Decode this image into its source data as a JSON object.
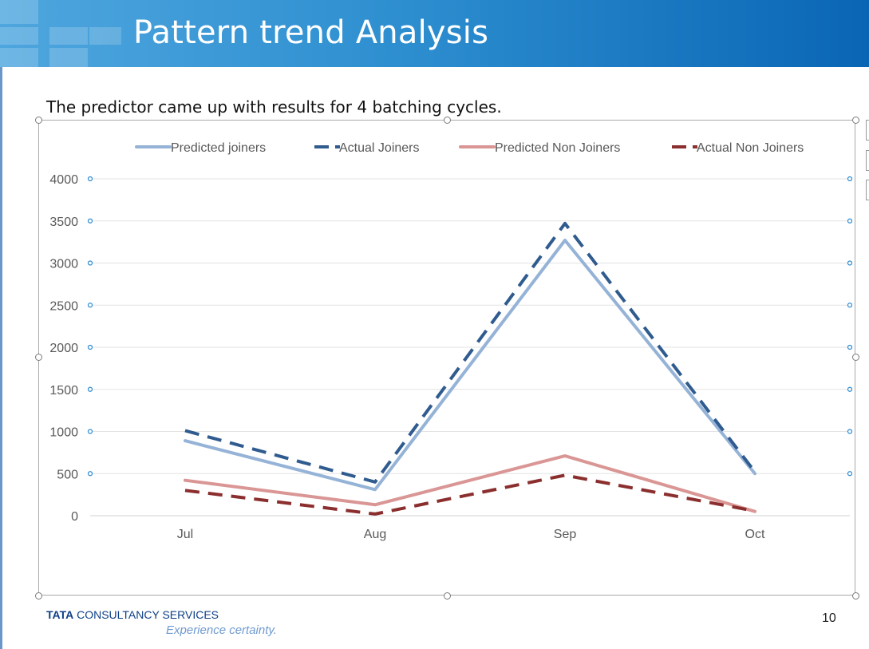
{
  "slide": {
    "title": "Pattern trend Analysis",
    "subtitle": "The predictor came up with results for 4 batching cycles.",
    "logo_bold": "TATA",
    "logo_rest": "CONSULTANCY SERVICES",
    "tagline": "Experience certainty.",
    "page_number": "10"
  },
  "colors": {
    "predicted_joiners": "#95b3d7",
    "actual_joiners": "#2f5b8f",
    "predicted_non_joiners": "#d99694",
    "actual_non_joiners": "#8b2e2e"
  },
  "chart_data": {
    "type": "line",
    "categories": [
      "Jul",
      "Aug",
      "Sep",
      "Oct"
    ],
    "series": [
      {
        "name": "Predicted joiners",
        "values": [
          890,
          310,
          3270,
          500
        ],
        "style": "solid",
        "color": "#95b3d7"
      },
      {
        "name": "Actual Joiners",
        "values": [
          1010,
          400,
          3470,
          520
        ],
        "style": "dashed",
        "color": "#2f5b8f"
      },
      {
        "name": "Predicted Non Joiners",
        "values": [
          420,
          130,
          710,
          50
        ],
        "style": "solid",
        "color": "#d99694"
      },
      {
        "name": "Actual Non Joiners",
        "values": [
          300,
          20,
          480,
          55
        ],
        "style": "dashed",
        "color": "#8b2e2e"
      }
    ],
    "yticks": [
      0,
      500,
      1000,
      1500,
      2000,
      2500,
      3000,
      3500,
      4000
    ],
    "ylim": [
      0,
      4000
    ],
    "grid": true,
    "legend_position": "top"
  }
}
